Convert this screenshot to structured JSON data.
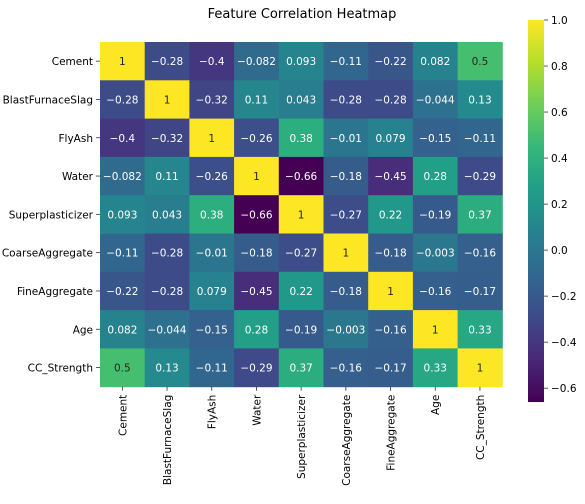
{
  "chart_data": {
    "type": "heatmap",
    "title": "Feature Correlation Heatmap",
    "xlabel": "",
    "ylabel": "",
    "rows": [
      "Cement",
      "BlastFurnaceSlag",
      "FlyAsh",
      "Water",
      "Superplasticizer",
      "CoarseAggregate",
      "FineAggregate",
      "Age",
      "CC_Strength"
    ],
    "columns": [
      "Cement",
      "BlastFurnaceSlag",
      "FlyAsh",
      "Water",
      "Superplasticizer",
      "CoarseAggregate",
      "FineAggregate",
      "Age",
      "CC_Strength"
    ],
    "values": [
      [
        1,
        -0.28,
        -0.4,
        -0.082,
        0.093,
        -0.11,
        -0.22,
        0.082,
        0.5
      ],
      [
        -0.28,
        1,
        -0.32,
        0.11,
        0.043,
        -0.28,
        -0.28,
        -0.044,
        0.13
      ],
      [
        -0.4,
        -0.32,
        1,
        -0.26,
        0.38,
        -0.01,
        0.079,
        -0.15,
        -0.11
      ],
      [
        -0.082,
        0.11,
        -0.26,
        1,
        -0.66,
        -0.18,
        -0.45,
        0.28,
        -0.29
      ],
      [
        0.093,
        0.043,
        0.38,
        -0.66,
        1,
        -0.27,
        0.22,
        -0.19,
        0.37
      ],
      [
        -0.11,
        -0.28,
        -0.01,
        -0.18,
        -0.27,
        1,
        -0.18,
        -0.003,
        -0.16
      ],
      [
        -0.22,
        -0.28,
        0.079,
        -0.45,
        0.22,
        -0.18,
        1,
        -0.16,
        -0.17
      ],
      [
        0.082,
        -0.044,
        -0.15,
        0.28,
        -0.19,
        -0.003,
        -0.16,
        1,
        0.33
      ],
      [
        0.5,
        0.13,
        -0.11,
        -0.29,
        0.37,
        -0.16,
        -0.17,
        0.33,
        1
      ]
    ],
    "colorscale": "viridis",
    "vmin": -0.66,
    "vmax": 1,
    "colorbar_ticks": [
      1.0,
      0.8,
      0.6,
      0.4,
      0.2,
      0.0,
      -0.2,
      -0.4,
      -0.6
    ],
    "colorbar_tick_labels": [
      "1.0",
      "0.8",
      "0.6",
      "0.4",
      "0.2",
      "0.0",
      "−0.2",
      "−0.4",
      "−0.6"
    ],
    "annotated": true,
    "grid": false
  }
}
